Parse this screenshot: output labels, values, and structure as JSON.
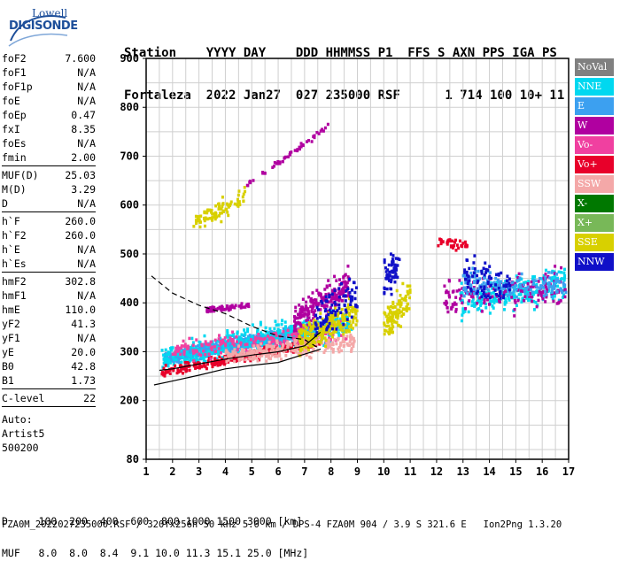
{
  "logo": {
    "top": "Lowell",
    "bottom": "DIGISONDE"
  },
  "header": {
    "line1": "Station    YYYY DAY    DDD HHMMSS P1  FFS S AXN PPS IGA PS",
    "line2": "Fortaleza  2022 Jan27  027 235000 RSF      1 714 100 10+ 11"
  },
  "params": {
    "group1": [
      {
        "name": "foF2",
        "value": "7.600"
      },
      {
        "name": "foF1",
        "value": "N/A"
      },
      {
        "name": "foF1p",
        "value": "N/A"
      },
      {
        "name": "foE",
        "value": "N/A"
      },
      {
        "name": "foEp",
        "value": "0.47"
      },
      {
        "name": "fxI",
        "value": "8.35"
      },
      {
        "name": "foEs",
        "value": "N/A"
      },
      {
        "name": "fmin",
        "value": "2.00"
      }
    ],
    "group2": [
      {
        "name": "MUF(D)",
        "value": "25.03"
      },
      {
        "name": "M(D)",
        "value": "3.29"
      },
      {
        "name": "D",
        "value": "N/A"
      }
    ],
    "group3": [
      {
        "name": "h`F",
        "value": "260.0"
      },
      {
        "name": "h`F2",
        "value": "260.0"
      },
      {
        "name": "h`E",
        "value": "N/A"
      },
      {
        "name": "h`Es",
        "value": "N/A"
      }
    ],
    "group4": [
      {
        "name": "hmF2",
        "value": "302.8"
      },
      {
        "name": "hmF1",
        "value": "N/A"
      },
      {
        "name": "hmE",
        "value": "110.0"
      },
      {
        "name": "yF2",
        "value": "41.3"
      },
      {
        "name": "yF1",
        "value": "N/A"
      },
      {
        "name": "yE",
        "value": "20.0"
      },
      {
        "name": "B0",
        "value": "42.8"
      },
      {
        "name": "B1",
        "value": "1.73"
      }
    ],
    "group5": [
      {
        "name": "C-level",
        "value": "22"
      }
    ],
    "auto": [
      "Auto:",
      "Artist5",
      "500200"
    ]
  },
  "legend": [
    {
      "label": "NoVal",
      "color": "#808080"
    },
    {
      "label": "NNE",
      "color": "#00d8f0"
    },
    {
      "label": "E",
      "color": "#3ca0f0"
    },
    {
      "label": "W",
      "color": "#b000a0"
    },
    {
      "label": "Vo-",
      "color": "#f040a0"
    },
    {
      "label": "Vo+",
      "color": "#e8002a"
    },
    {
      "label": "SSW",
      "color": "#f4a8a8"
    },
    {
      "label": "X-",
      "color": "#007800"
    },
    {
      "label": "X+",
      "color": "#78b858"
    },
    {
      "label": "SSE",
      "color": "#d8d000"
    },
    {
      "label": "NNW",
      "color": "#1010c8"
    }
  ],
  "footer": {
    "line1": "D     100  200  400  600  800 1000 1500 3000 [km]",
    "line2": "MUF   8.0  8.0  8.4  9.1 10.0 11.3 15.1 25.0 [MHz]",
    "file": "FZA0M_2022027235000.RSF / 320fx256h 50 kHz 5.0 km / DPS-4 FZA0M 904 / 3.9 S 321.6 E   Ion2Png 1.3.20"
  },
  "chart_data": {
    "type": "scatter",
    "xlim": [
      1,
      17
    ],
    "ylim": [
      80,
      900
    ],
    "xticks": [
      1,
      2,
      3,
      4,
      5,
      6,
      7,
      8,
      9,
      10,
      11,
      12,
      13,
      14,
      15,
      16,
      17
    ],
    "yticks": [
      80,
      200,
      300,
      400,
      500,
      600,
      700,
      800,
      900
    ],
    "grid": true,
    "clusters": [
      {
        "series": "E",
        "fmin": 1.7,
        "fmax": 7.4,
        "h_start": 285,
        "h_end": 345,
        "spread": 12,
        "n": 900
      },
      {
        "series": "NNE",
        "fmin": 1.6,
        "fmax": 8.8,
        "h_start": 285,
        "h_end": 360,
        "spread": 28,
        "n": 450
      },
      {
        "series": "W",
        "fmin": 3.3,
        "fmax": 4.9,
        "h_start": 385,
        "h_end": 395,
        "spread": 6,
        "n": 60
      },
      {
        "series": "W",
        "fmin": 6.6,
        "fmax": 8.7,
        "h_start": 360,
        "h_end": 440,
        "spread": 30,
        "n": 220
      },
      {
        "series": "Vo+",
        "fmin": 1.6,
        "fmax": 7.6,
        "h_start": 258,
        "h_end": 320,
        "spread": 10,
        "n": 260
      },
      {
        "series": "Vo-",
        "fmin": 2.0,
        "fmax": 8.6,
        "h_start": 300,
        "h_end": 340,
        "spread": 20,
        "n": 200
      },
      {
        "series": "SSW",
        "fmin": 4.0,
        "fmax": 8.9,
        "h_start": 290,
        "h_end": 320,
        "spread": 18,
        "n": 260
      },
      {
        "series": "SSE",
        "fmin": 6.8,
        "fmax": 9.0,
        "h_start": 320,
        "h_end": 380,
        "spread": 30,
        "n": 240
      },
      {
        "series": "SSE",
        "fmin": 10.0,
        "fmax": 11.0,
        "h_start": 350,
        "h_end": 410,
        "spread": 35,
        "n": 120
      },
      {
        "series": "SSE",
        "fmin": 2.8,
        "fmax": 4.8,
        "h_start": 560,
        "h_end": 620,
        "spread": 20,
        "n": 90
      },
      {
        "series": "NNW",
        "fmin": 7.4,
        "fmax": 9.0,
        "h_start": 360,
        "h_end": 420,
        "spread": 40,
        "n": 90
      },
      {
        "series": "NNW",
        "fmin": 10.0,
        "fmax": 10.6,
        "h_start": 440,
        "h_end": 480,
        "spread": 35,
        "n": 60
      },
      {
        "series": "NNE",
        "fmin": 12.9,
        "fmax": 16.9,
        "h_start": 400,
        "h_end": 440,
        "spread": 30,
        "n": 260
      },
      {
        "series": "W",
        "fmin": 12.3,
        "fmax": 16.9,
        "h_start": 410,
        "h_end": 430,
        "spread": 35,
        "n": 180
      },
      {
        "series": "E",
        "fmin": 13.0,
        "fmax": 16.9,
        "h_start": 440,
        "h_end": 430,
        "spread": 25,
        "n": 160
      },
      {
        "series": "NNW",
        "fmin": 13.0,
        "fmax": 14.8,
        "h_start": 460,
        "h_end": 430,
        "spread": 40,
        "n": 80
      },
      {
        "series": "Vo+",
        "fmin": 12.0,
        "fmax": 13.2,
        "h_start": 525,
        "h_end": 520,
        "spread": 12,
        "n": 40
      },
      {
        "series": "W",
        "fmin": 4.8,
        "fmax": 7.9,
        "h_start": 640,
        "h_end": 760,
        "spread": 6,
        "n": 50
      }
    ],
    "profile": {
      "dashed": [
        [
          1.2,
          455
        ],
        [
          2.0,
          420
        ],
        [
          3.0,
          395
        ],
        [
          4.0,
          378
        ],
        [
          5.0,
          352
        ],
        [
          6.0,
          332
        ],
        [
          7.0,
          325
        ],
        [
          7.6,
          305
        ]
      ],
      "solid": [
        [
          1.5,
          262
        ],
        [
          2.0,
          265
        ],
        [
          3.0,
          275
        ],
        [
          4.0,
          285
        ],
        [
          5.0,
          293
        ],
        [
          6.0,
          300
        ],
        [
          7.0,
          312
        ],
        [
          7.6,
          340
        ]
      ],
      "solid_lower": [
        [
          1.3,
          232
        ],
        [
          2.0,
          240
        ],
        [
          3.0,
          252
        ],
        [
          4.0,
          265
        ],
        [
          5.0,
          272
        ],
        [
          6.0,
          278
        ],
        [
          7.0,
          295
        ],
        [
          7.6,
          305
        ]
      ]
    }
  }
}
